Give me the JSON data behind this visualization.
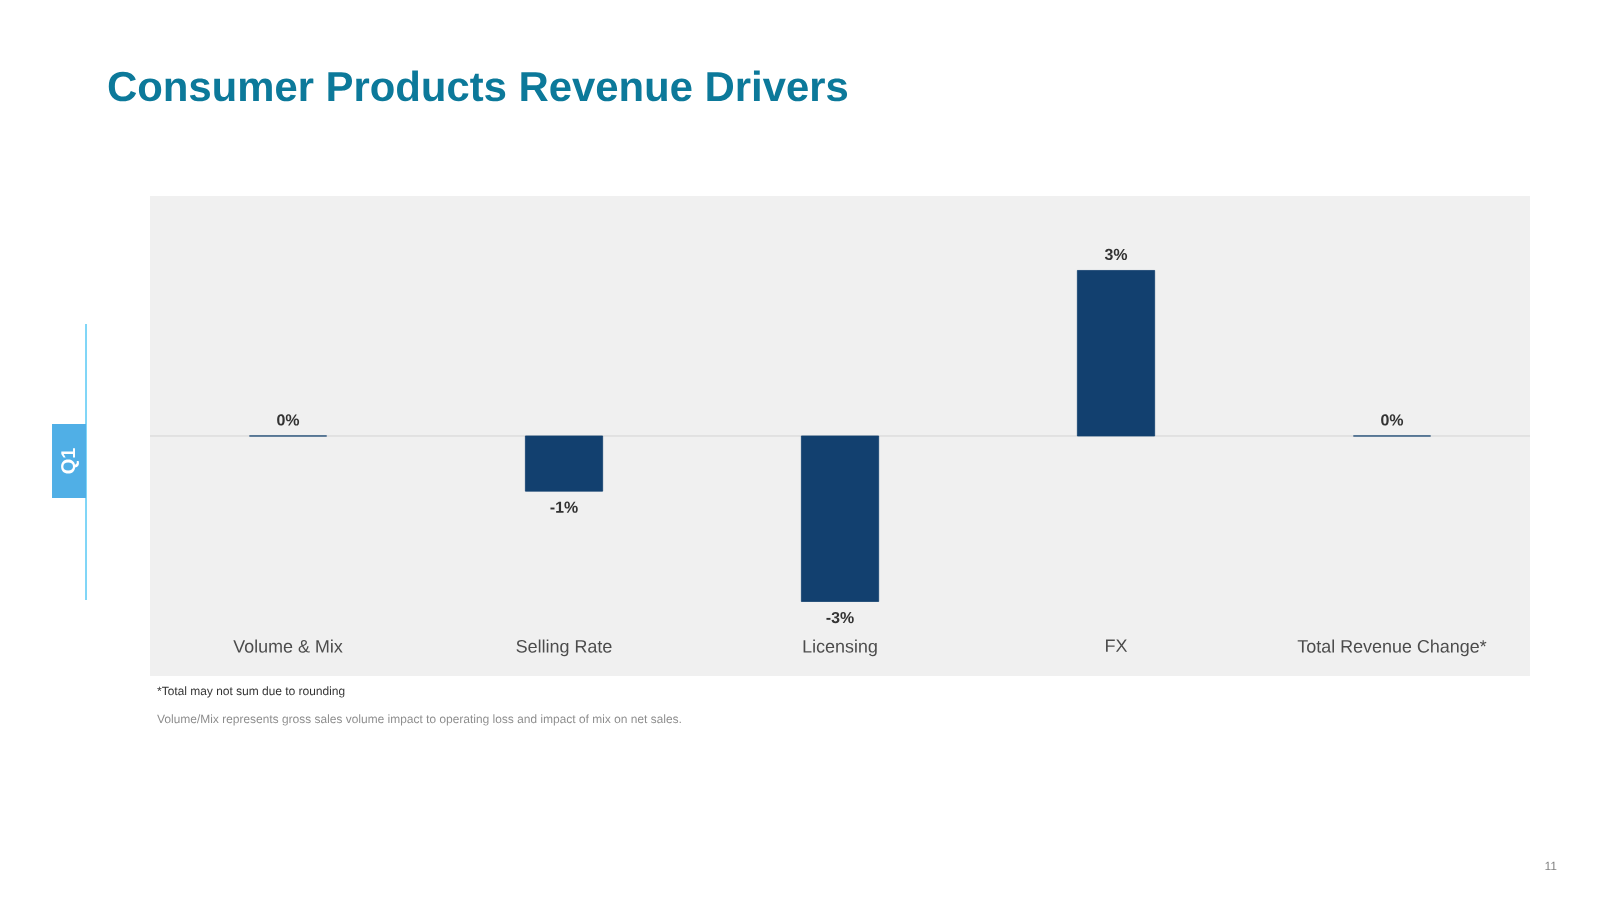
{
  "chart_data": {
    "type": "bar",
    "title": "Consumer Products Revenue Drivers",
    "subtitle": "Q1",
    "categories": [
      "Volume & Mix",
      "Selling Rate",
      "Licensing",
      "FX",
      "Total Revenue Change*"
    ],
    "values": [
      0,
      -1,
      -3,
      3,
      0
    ],
    "value_labels": [
      "0%",
      "-1%",
      "-3%",
      "3%",
      "0%"
    ],
    "color": "#12406f",
    "annotations": [
      "*Total may not sum due to rounding",
      "Volume/Mix represents gross sales volume impact to operating loss and impact of mix on net sales.",
      "11"
    ]
  }
}
